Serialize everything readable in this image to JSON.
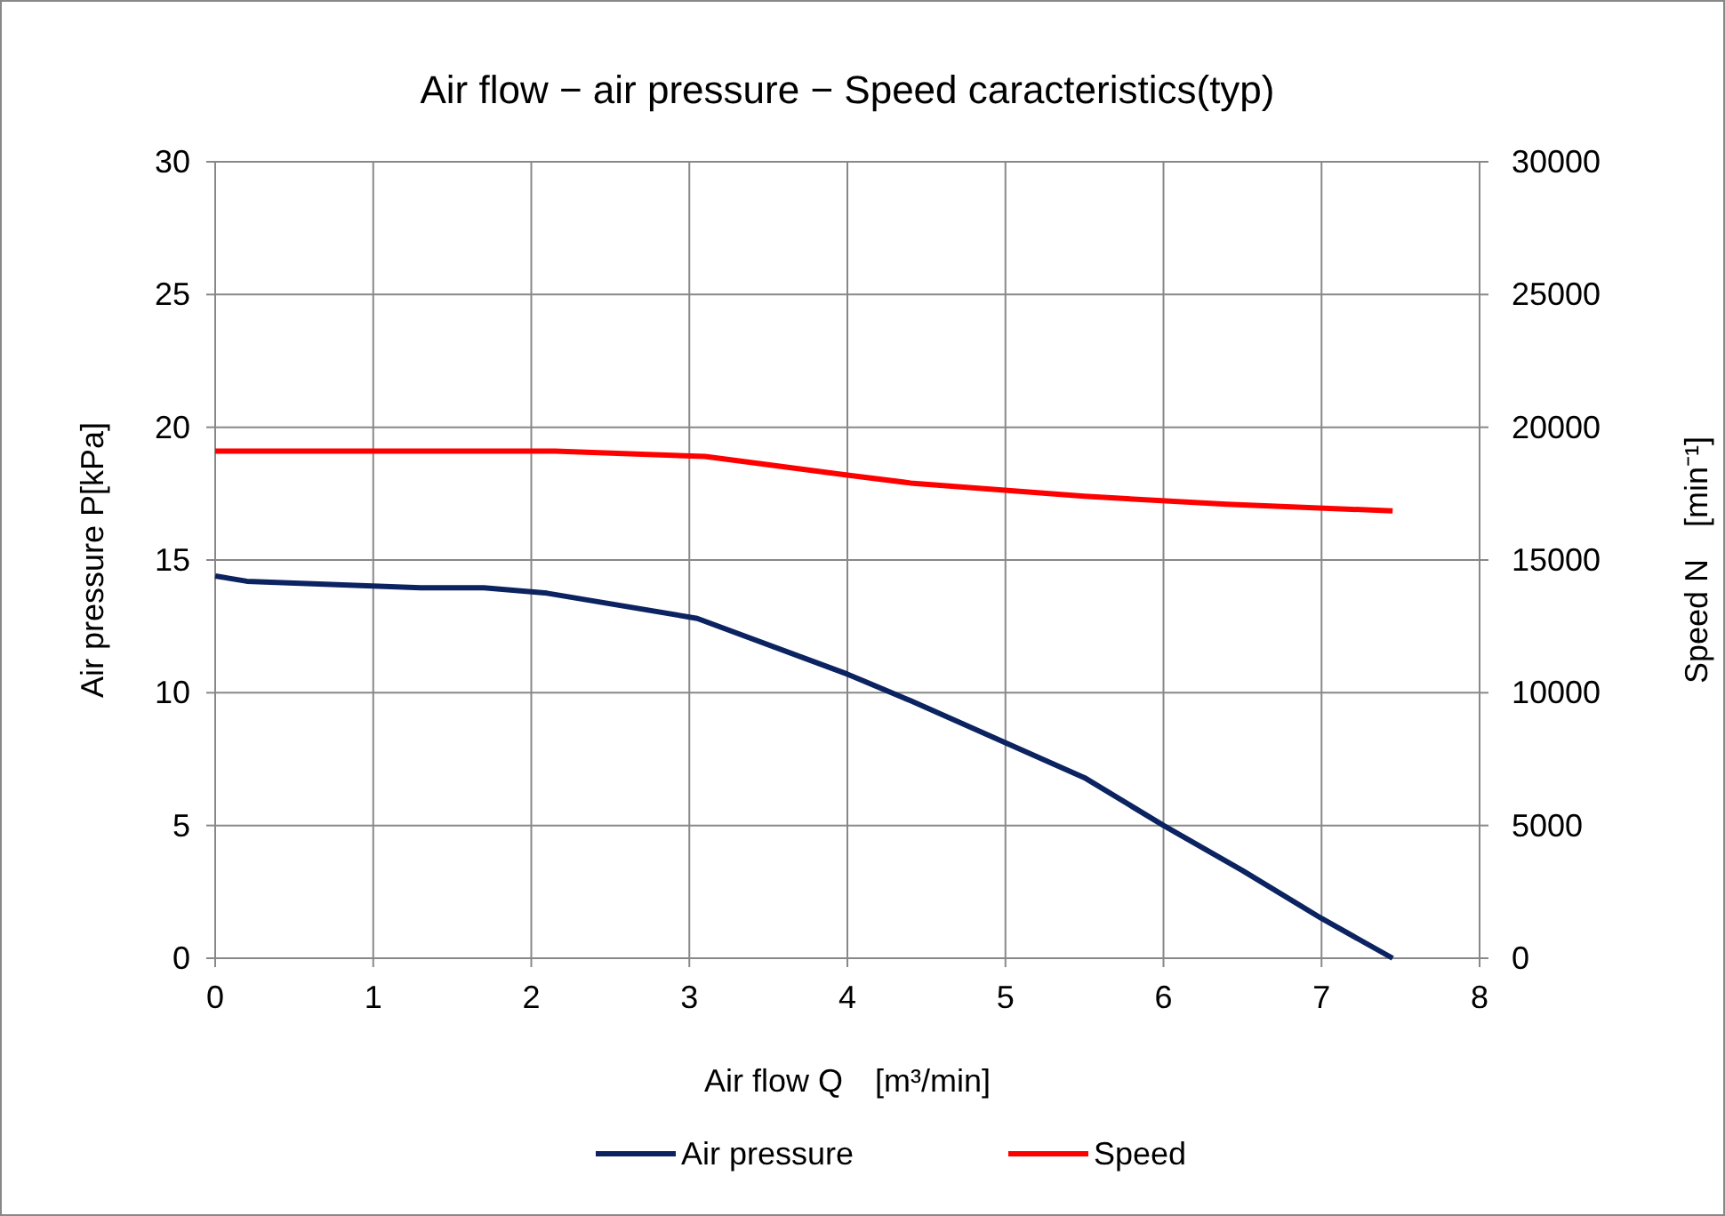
{
  "chart_data": {
    "type": "line",
    "title": "Air flow − air pressure − Speed caracteristics(typ)",
    "xlabel": "Air flow Q　[m³/min]",
    "ylabel": "Air pressure P[kPa]",
    "y2label": "Speed N　[min⁻¹]",
    "xlim": [
      0,
      8
    ],
    "xticks": [
      0,
      1,
      2,
      3,
      4,
      5,
      6,
      7,
      8
    ],
    "ylim": [
      0,
      30
    ],
    "yticks": [
      0,
      5,
      10,
      15,
      20,
      25,
      30
    ],
    "y2lim": [
      0,
      30000
    ],
    "y2ticks": [
      0,
      5000,
      10000,
      15000,
      20000,
      25000,
      30000
    ],
    "grid": true,
    "legend": "bottom",
    "marker": "none",
    "line_style": "solid",
    "series": [
      {
        "name": "Air pressure",
        "color": "#0c2361",
        "x": [
          0,
          0.2,
          1.3,
          1.7,
          2.1,
          3.05,
          4,
          4.4,
          5.5,
          6,
          6.5,
          7,
          7.45
        ],
        "values": [
          14.4,
          14.2,
          13.95,
          13.95,
          13.75,
          12.8,
          10.7,
          9.7,
          6.8,
          5,
          3.3,
          1.5,
          0
        ]
      },
      {
        "name": "Speed",
        "color": "#ff0000",
        "axis": "y2",
        "x": [
          0,
          2.15,
          3.1,
          4,
          4.4,
          5.5,
          6.4,
          7.45
        ],
        "values": [
          19100,
          19100,
          18900,
          18200,
          17900,
          17400,
          17100,
          16850
        ]
      }
    ]
  }
}
